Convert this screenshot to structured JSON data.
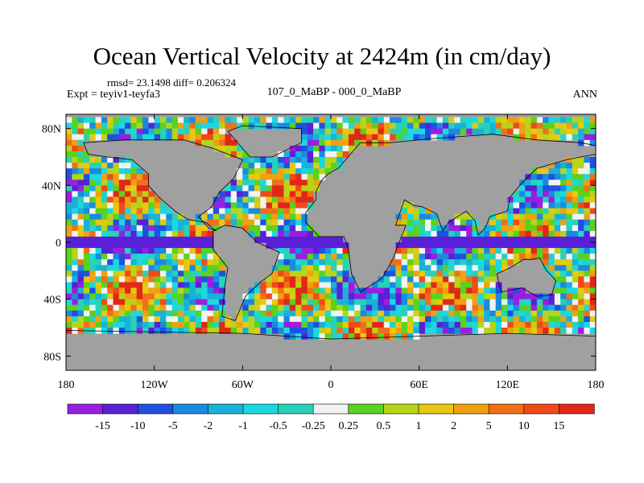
{
  "title": "Ocean Vertical Velocity at 2424m (in cm/day)",
  "stats": "rmsd= 23.1498 diff= 0.206324",
  "expt_label": "Expt = teyiv1-teyfa3",
  "subtitle": "107_0_MaBP - 000_0_MaBP",
  "season": "ANN",
  "y_ticks": [
    "80N",
    "40N",
    "0",
    "40S",
    "80S"
  ],
  "x_ticks": [
    "180",
    "120W",
    "60W",
    "0",
    "60E",
    "120E",
    "180"
  ],
  "colorbar": {
    "labels": [
      "-15",
      "-10",
      "-5",
      "-2",
      "-1",
      "-0.5",
      "-0.25",
      "0.25",
      "0.5",
      "1",
      "2",
      "5",
      "10",
      "15"
    ],
    "colors": [
      "#9a1ee0",
      "#5a20d8",
      "#2050e0",
      "#1a8ae0",
      "#18b2d8",
      "#1cd8e0",
      "#28d2b8",
      "#f2f2f2",
      "#5ad21e",
      "#b8d418",
      "#e8c810",
      "#f0a010",
      "#f07018",
      "#f04a18",
      "#e02818"
    ]
  },
  "land_color": "#a0a0a0",
  "outline_color": "#000000"
}
